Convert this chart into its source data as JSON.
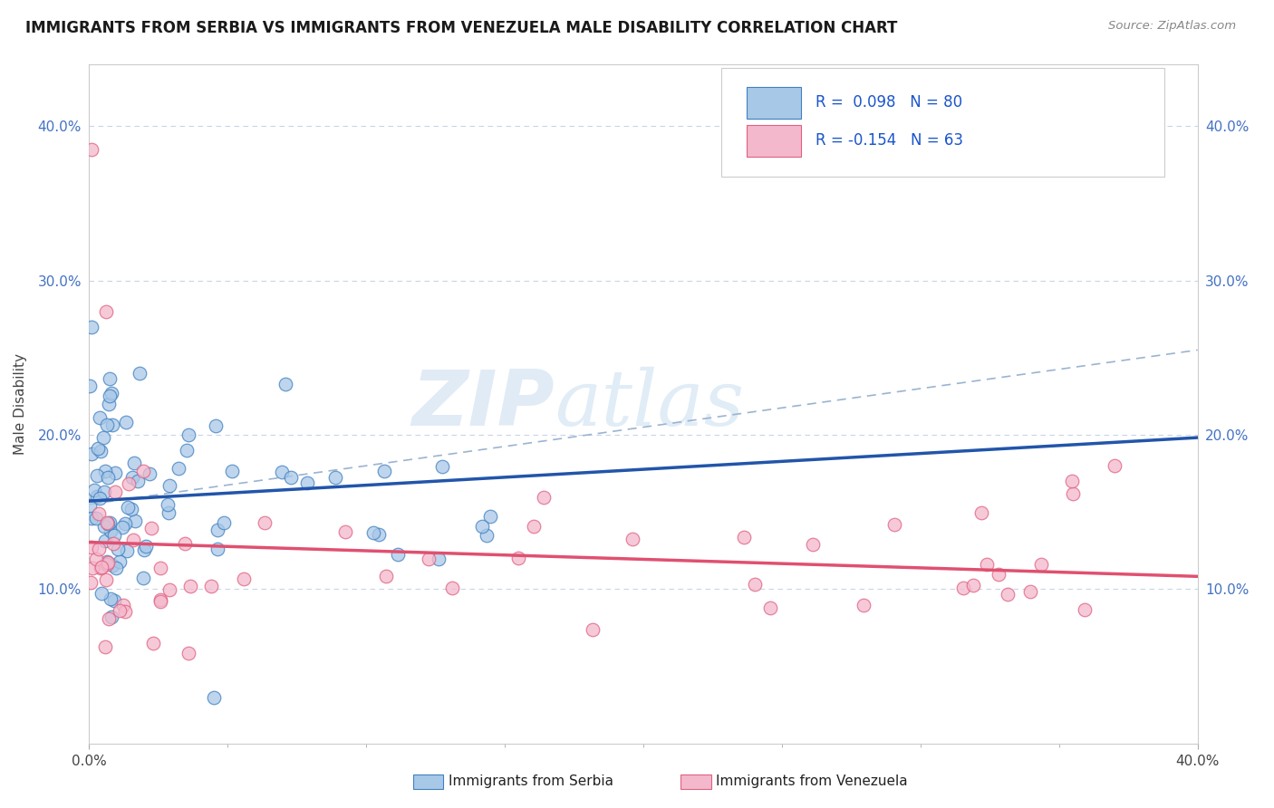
{
  "title": "IMMIGRANTS FROM SERBIA VS IMMIGRANTS FROM VENEZUELA MALE DISABILITY CORRELATION CHART",
  "source": "Source: ZipAtlas.com",
  "ylabel": "Male Disability",
  "xlim": [
    0.0,
    0.4
  ],
  "ylim": [
    0.0,
    0.44
  ],
  "xticks": [
    0.0,
    0.4
  ],
  "yticks": [
    0.1,
    0.2,
    0.3,
    0.4
  ],
  "xticklabels": [
    "0.0%",
    "40.0%"
  ],
  "yticklabels": [
    "10.0%",
    "20.0%",
    "30.0%",
    "40.0%"
  ],
  "serbia_color": "#a8c8e8",
  "venezuela_color": "#f4b8cc",
  "serbia_edge": "#4080c0",
  "venezuela_edge": "#e06080",
  "serbia_line_color": "#2255aa",
  "venezuela_line_color": "#e05070",
  "dash_line_color": "#9ab4d0",
  "R_serbia": 0.098,
  "N_serbia": 80,
  "R_venezuela": -0.154,
  "N_venezuela": 63,
  "legend_label_serbia": "Immigrants from Serbia",
  "legend_label_venezuela": "Immigrants from Venezuela",
  "watermark_zip": "ZIP",
  "watermark_atlas": "atlas",
  "background_color": "#ffffff",
  "grid_color": "#c8d4e8",
  "serbia_trend_x0": 0.0,
  "serbia_trend_y0": 0.155,
  "serbia_trend_x1": 0.05,
  "serbia_trend_y1": 0.17,
  "venezuela_trend_x0": 0.0,
  "venezuela_trend_y0": 0.148,
  "venezuela_trend_x1": 0.4,
  "venezuela_trend_y1": 0.082,
  "dash_trend_x0": 0.0,
  "dash_trend_y0": 0.155,
  "dash_trend_x1": 0.4,
  "dash_trend_y1": 0.255
}
